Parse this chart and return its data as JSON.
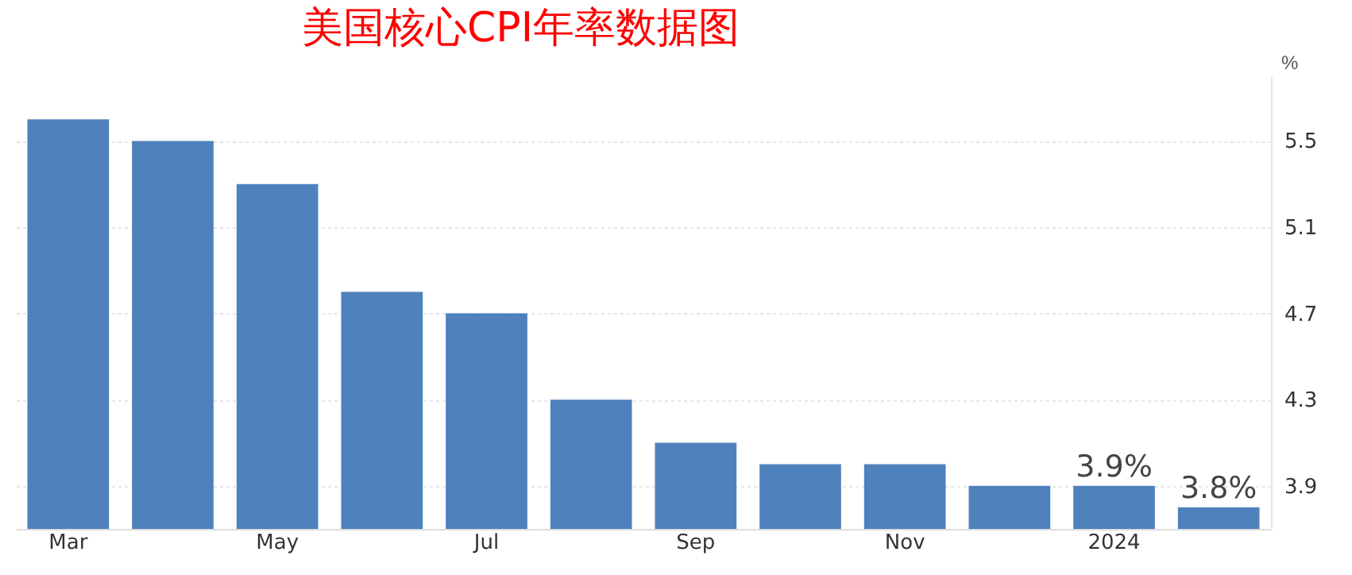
{
  "chart_data": {
    "type": "bar",
    "title": "美国核心CPI年率数据图",
    "ylabel": "%",
    "categories": [
      "Mar",
      null,
      "May",
      null,
      "Jul",
      null,
      "Sep",
      null,
      "Nov",
      null,
      "2024",
      null
    ],
    "values": [
      5.6,
      5.5,
      5.3,
      4.8,
      4.7,
      4.3,
      4.1,
      4.0,
      4.0,
      3.9,
      3.9,
      3.8
    ],
    "value_labels": [
      null,
      null,
      null,
      null,
      null,
      null,
      null,
      null,
      null,
      null,
      "3.9%",
      "3.8%"
    ],
    "color": "#4f81bd",
    "ylim": [
      3.7,
      5.8
    ],
    "yticks": [
      3.9,
      4.3,
      4.7,
      5.1,
      5.5
    ],
    "grid": "y"
  }
}
